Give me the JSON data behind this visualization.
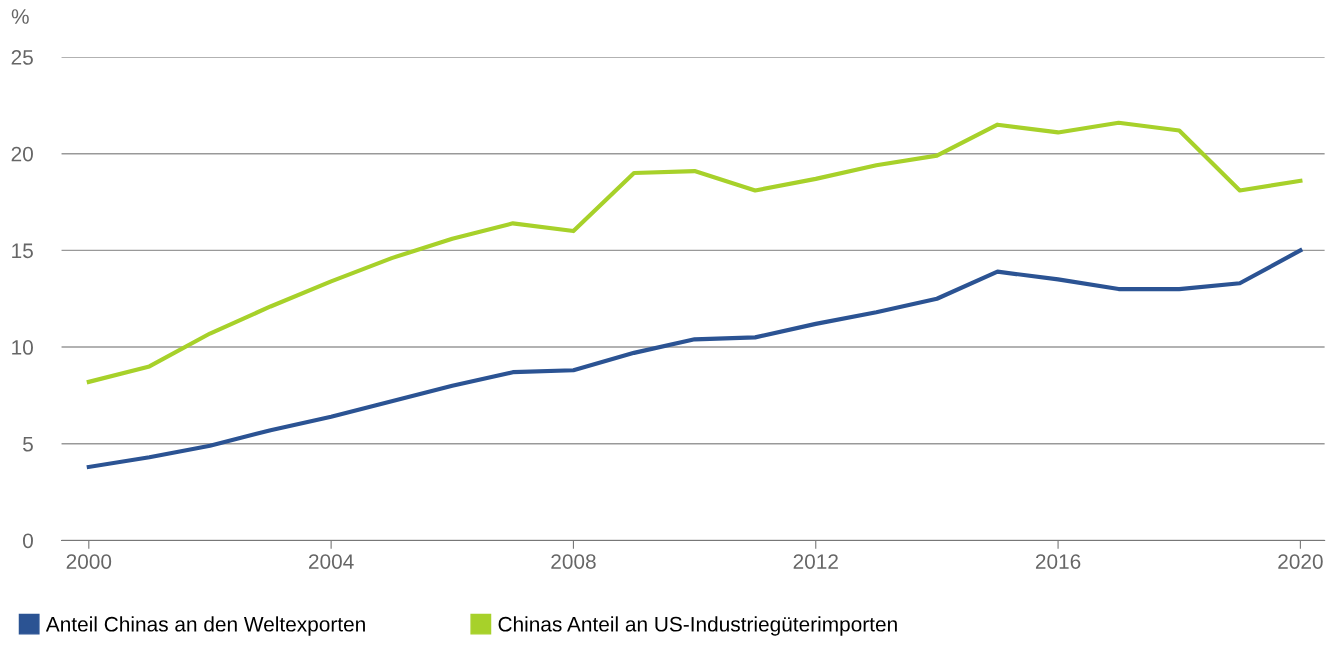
{
  "chart_data": {
    "type": "line",
    "ylabel": "%",
    "x": [
      2000,
      2001,
      2002,
      2003,
      2004,
      2005,
      2006,
      2007,
      2008,
      2009,
      2010,
      2011,
      2012,
      2013,
      2014,
      2015,
      2016,
      2017,
      2018,
      2019,
      2020
    ],
    "series": [
      {
        "name": "Anteil Chinas an den Weltexporten",
        "color": "#2b5393",
        "values": [
          3.8,
          4.3,
          4.9,
          5.7,
          6.4,
          7.2,
          8.0,
          8.7,
          8.8,
          9.7,
          10.4,
          10.5,
          11.2,
          11.8,
          12.5,
          13.9,
          13.5,
          13.0,
          13.0,
          13.3,
          15.0
        ]
      },
      {
        "name": "Chinas Anteil an US-Industriegüterimporten",
        "color": "#a7d12a",
        "values": [
          8.2,
          9.0,
          10.7,
          12.1,
          13.4,
          14.6,
          15.6,
          16.4,
          16.0,
          19.0,
          19.1,
          18.1,
          18.7,
          19.4,
          19.9,
          21.5,
          21.1,
          21.6,
          21.2,
          18.1,
          18.6
        ]
      }
    ],
    "xlim": [
      1999.55,
      2020.4
    ],
    "xticks": [
      2000,
      2004,
      2008,
      2012,
      2016,
      2020
    ],
    "ylim": [
      0,
      25
    ],
    "yticks": [
      0,
      5,
      10,
      15,
      20,
      25
    ],
    "grid": "y",
    "legend": "bottom",
    "marker": "none",
    "line_style": "solid"
  }
}
